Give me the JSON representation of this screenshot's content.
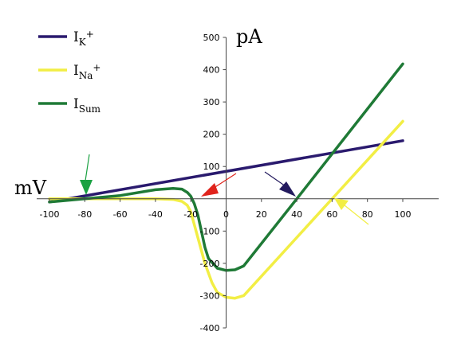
{
  "chart_data": {
    "type": "line",
    "title": "",
    "xlabel": "mV",
    "ylabel": "pA",
    "xlim": [
      -100,
      100
    ],
    "ylim": [
      -400,
      500
    ],
    "x_ticks": [
      -100,
      -80,
      -60,
      -40,
      -20,
      0,
      20,
      40,
      60,
      80,
      100
    ],
    "y_ticks": [
      -400,
      -300,
      -200,
      -100,
      100,
      200,
      300,
      400,
      500
    ],
    "grid": false,
    "legend_position": "top-left",
    "series": [
      {
        "name": "IK+",
        "name_main": "I",
        "name_sub": "K",
        "name_sup": "+",
        "color": "#2a1a6e",
        "points": [
          [
            -100,
            -10
          ],
          [
            100,
            180
          ]
        ]
      },
      {
        "name": "INa+",
        "name_main": "I",
        "name_sub": "Na",
        "name_sup": "+",
        "color": "#f2ee44",
        "points": [
          [
            -100,
            0
          ],
          [
            -40,
            0
          ],
          [
            -30,
            -2
          ],
          [
            -25,
            -8
          ],
          [
            -22,
            -20
          ],
          [
            -20,
            -40
          ],
          [
            -18,
            -80
          ],
          [
            -15,
            -140
          ],
          [
            -12,
            -200
          ],
          [
            -8,
            -260
          ],
          [
            -5,
            -290
          ],
          [
            0,
            -305
          ],
          [
            5,
            -308
          ],
          [
            10,
            -300
          ],
          [
            60,
            0
          ],
          [
            100,
            240
          ]
        ]
      },
      {
        "name": "ISum",
        "name_main": "I",
        "name_sub": "Sum",
        "name_sup": "",
        "color": "#1f7a36",
        "points": [
          [
            -100,
            -10
          ],
          [
            -80,
            0
          ],
          [
            -60,
            10
          ],
          [
            -40,
            28
          ],
          [
            -30,
            32
          ],
          [
            -25,
            30
          ],
          [
            -22,
            20
          ],
          [
            -20,
            8
          ],
          [
            -18,
            -15
          ],
          [
            -16,
            -50
          ],
          [
            -14,
            -100
          ],
          [
            -12,
            -150
          ],
          [
            -10,
            -185
          ],
          [
            -5,
            -215
          ],
          [
            0,
            -222
          ],
          [
            5,
            -220
          ],
          [
            10,
            -208
          ],
          [
            40,
            0
          ],
          [
            100,
            418
          ]
        ]
      }
    ],
    "annotations": [
      {
        "type": "arrow",
        "color": "#1aa142",
        "points_to": [
          -80,
          0
        ]
      },
      {
        "type": "arrow",
        "color": "#e0231c",
        "points_to": [
          -18,
          0
        ]
      },
      {
        "type": "arrow",
        "color": "#231a5e",
        "points_to": [
          40,
          0
        ]
      },
      {
        "type": "arrow",
        "color": "#f2ee44",
        "points_to": [
          60,
          0
        ]
      }
    ]
  }
}
